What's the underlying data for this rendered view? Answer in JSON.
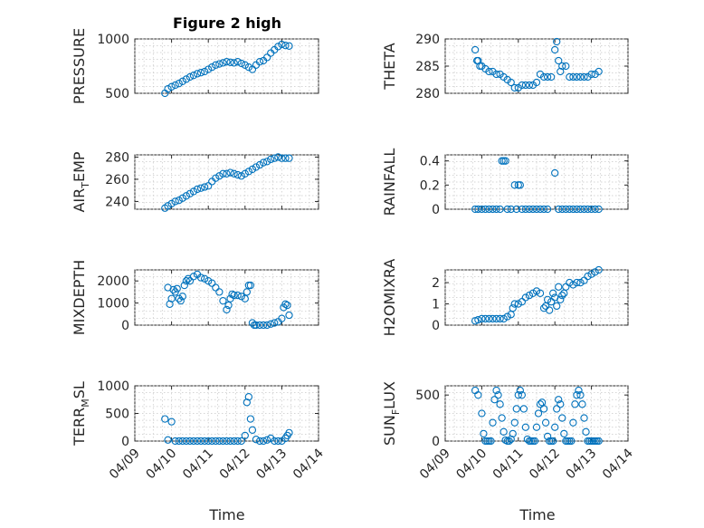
{
  "title": "Figure 2 high",
  "xlabel": "Time",
  "date_ticks": [
    "04/09",
    "04/10",
    "04/11",
    "04/12",
    "04/13",
    "04/14"
  ],
  "marker_color": "#0072BD",
  "chart_data": [
    {
      "id": "pressure",
      "type": "scatter",
      "ylabel": "PRESSURE",
      "ylabel_sub": "",
      "ylim": [
        500,
        1000
      ],
      "yticks": [
        500,
        1000
      ],
      "grid": true,
      "x_unit": "day offset from 04/09",
      "series": [
        {
          "x": [
            0.82,
            0.9,
            1.0,
            1.1,
            1.2,
            1.3,
            1.4,
            1.5,
            1.6,
            1.7,
            1.8,
            1.9,
            2.0,
            2.1,
            2.2,
            2.3,
            2.4,
            2.5,
            2.6,
            2.7,
            2.8,
            2.9,
            3.0,
            3.1,
            3.2,
            3.3,
            3.4,
            3.5,
            3.6,
            3.7,
            3.8,
            3.9,
            4.0,
            4.1,
            4.2
          ],
          "y": [
            500,
            540,
            560,
            575,
            590,
            610,
            630,
            650,
            665,
            680,
            690,
            700,
            720,
            740,
            760,
            770,
            780,
            790,
            785,
            780,
            790,
            775,
            760,
            740,
            720,
            760,
            790,
            800,
            830,
            870,
            900,
            930,
            950,
            940,
            935
          ]
        }
      ]
    },
    {
      "id": "theta",
      "type": "scatter",
      "ylabel": "THETA",
      "ylabel_sub": "",
      "ylim": [
        280,
        290
      ],
      "yticks": [
        280,
        285,
        290
      ],
      "grid": true,
      "x_unit": "day offset from 04/09",
      "series": [
        {
          "x": [
            0.82,
            0.87,
            0.9,
            0.95,
            1.0,
            1.1,
            1.2,
            1.3,
            1.4,
            1.5,
            1.6,
            1.7,
            1.8,
            1.9,
            2.0,
            2.1,
            2.2,
            2.3,
            2.4,
            2.5,
            2.6,
            2.7,
            2.8,
            2.9,
            3.0,
            3.05,
            3.1,
            3.15,
            3.2,
            3.3,
            3.4,
            3.5,
            3.6,
            3.7,
            3.8,
            3.9,
            4.0,
            4.1,
            4.2
          ],
          "y": [
            288,
            286,
            286,
            285,
            285,
            284.5,
            284,
            284,
            283.5,
            283.5,
            283,
            282.5,
            282,
            281,
            281,
            281.5,
            281.5,
            281.5,
            281.5,
            282,
            283.5,
            283,
            283,
            283,
            288,
            289.5,
            286,
            284,
            285,
            285,
            283,
            283,
            283,
            283,
            283,
            283,
            283.5,
            283.5,
            284
          ]
        }
      ]
    },
    {
      "id": "air-temp",
      "type": "scatter",
      "ylabel": "AIR",
      "ylabel_sub": "T",
      "ylabel_suffix": "EMP",
      "ylim": [
        233,
        282
      ],
      "yticks": [
        240,
        260,
        280
      ],
      "grid": true,
      "x_unit": "day offset from 04/09",
      "series": [
        {
          "x": [
            0.82,
            0.9,
            1.0,
            1.1,
            1.2,
            1.3,
            1.4,
            1.5,
            1.6,
            1.7,
            1.8,
            1.9,
            2.0,
            2.1,
            2.2,
            2.3,
            2.4,
            2.5,
            2.6,
            2.7,
            2.8,
            2.9,
            3.0,
            3.1,
            3.2,
            3.3,
            3.4,
            3.5,
            3.6,
            3.7,
            3.8,
            3.9,
            4.0,
            4.1,
            4.2
          ],
          "y": [
            234,
            236,
            238,
            240,
            241,
            243,
            245,
            247,
            249,
            251,
            252,
            253,
            254,
            258,
            261,
            263,
            265,
            265,
            266,
            265,
            264,
            263,
            265,
            267,
            269,
            271,
            273,
            275,
            276,
            278,
            279,
            280,
            279,
            279,
            279
          ]
        }
      ]
    },
    {
      "id": "rainfall",
      "type": "scatter",
      "ylabel": "RAINFALL",
      "ylabel_sub": "",
      "ylim": [
        0,
        0.45
      ],
      "yticks": [
        0,
        0.2,
        0.4
      ],
      "grid": true,
      "x_unit": "day offset from 04/09",
      "series": [
        {
          "x": [
            0.82,
            0.9,
            1.0,
            1.1,
            1.2,
            1.3,
            1.4,
            1.5,
            1.55,
            1.6,
            1.65,
            1.7,
            1.8,
            1.9,
            1.95,
            2.0,
            2.05,
            2.1,
            2.2,
            2.3,
            2.4,
            2.5,
            2.6,
            2.7,
            2.8,
            3.0,
            3.1,
            3.2,
            3.3,
            3.4,
            3.5,
            3.6,
            3.7,
            3.8,
            3.9,
            4.0,
            4.1,
            4.2
          ],
          "y": [
            0,
            0,
            0,
            0,
            0,
            0,
            0,
            0,
            0.4,
            0.4,
            0.4,
            0,
            0,
            0.2,
            0,
            0.2,
            0.2,
            0,
            0,
            0,
            0,
            0,
            0,
            0,
            0,
            0.3,
            0,
            0,
            0,
            0,
            0,
            0,
            0,
            0,
            0,
            0,
            0,
            0
          ]
        }
      ]
    },
    {
      "id": "mixdepth",
      "type": "scatter",
      "ylabel": "MIXDEPTH",
      "ylabel_sub": "",
      "ylim": [
        0,
        2500
      ],
      "yticks": [
        0,
        1000,
        2000
      ],
      "grid": true,
      "x_unit": "day offset from 04/09",
      "series": [
        {
          "x": [
            0.9,
            0.95,
            1.0,
            1.05,
            1.1,
            1.15,
            1.2,
            1.25,
            1.3,
            1.35,
            1.4,
            1.45,
            1.5,
            1.6,
            1.7,
            1.8,
            1.9,
            2.0,
            2.1,
            2.2,
            2.3,
            2.4,
            2.5,
            2.55,
            2.6,
            2.65,
            2.7,
            2.8,
            2.9,
            3.0,
            3.05,
            3.1,
            3.15,
            3.2,
            3.25,
            3.3,
            3.4,
            3.5,
            3.6,
            3.7,
            3.8,
            3.9,
            4.0,
            4.05,
            4.1,
            4.15,
            4.2
          ],
          "y": [
            1700,
            950,
            1200,
            1600,
            1500,
            1650,
            1200,
            1100,
            1300,
            1800,
            2000,
            2100,
            2000,
            2200,
            2300,
            2150,
            2100,
            2000,
            1900,
            1700,
            1500,
            1100,
            700,
            900,
            1200,
            1400,
            1350,
            1350,
            1300,
            1200,
            1500,
            1800,
            1800,
            100,
            0,
            0,
            0,
            0,
            0,
            50,
            100,
            150,
            300,
            800,
            950,
            900,
            450
          ]
        }
      ]
    },
    {
      "id": "h2omixra",
      "type": "scatter",
      "ylabel": "H2OMIXRA",
      "ylabel_sub": "",
      "ylim": [
        0,
        2.6
      ],
      "yticks": [
        0,
        1,
        2
      ],
      "grid": true,
      "x_unit": "day offset from 04/09",
      "series": [
        {
          "x": [
            0.82,
            0.9,
            1.0,
            1.1,
            1.2,
            1.3,
            1.4,
            1.5,
            1.6,
            1.7,
            1.8,
            1.85,
            1.9,
            2.0,
            2.1,
            2.2,
            2.3,
            2.4,
            2.5,
            2.6,
            2.7,
            2.75,
            2.8,
            2.85,
            2.9,
            2.95,
            3.0,
            3.05,
            3.1,
            3.15,
            3.2,
            3.25,
            3.3,
            3.4,
            3.5,
            3.6,
            3.7,
            3.8,
            3.9,
            4.0,
            4.1,
            4.2
          ],
          "y": [
            0.2,
            0.25,
            0.3,
            0.3,
            0.3,
            0.3,
            0.3,
            0.3,
            0.3,
            0.4,
            0.5,
            0.8,
            1.0,
            1.0,
            1.1,
            1.3,
            1.4,
            1.5,
            1.6,
            1.5,
            0.8,
            0.9,
            1.2,
            0.7,
            1.1,
            1.5,
            1.3,
            0.9,
            1.8,
            1.2,
            1.4,
            1.5,
            1.8,
            2.0,
            1.9,
            2.0,
            2.0,
            2.1,
            2.3,
            2.4,
            2.5,
            2.6
          ]
        }
      ]
    },
    {
      "id": "terr-msl",
      "type": "scatter",
      "ylabel": "TERR",
      "ylabel_sub": "M",
      "ylabel_suffix": "SL",
      "ylim": [
        0,
        1000
      ],
      "yticks": [
        0,
        500,
        1000
      ],
      "grid": true,
      "x_unit": "day offset from 04/09",
      "series": [
        {
          "x": [
            0.82,
            0.9,
            1.0,
            1.1,
            1.2,
            1.3,
            1.4,
            1.5,
            1.6,
            1.7,
            1.8,
            1.9,
            2.0,
            2.1,
            2.2,
            2.3,
            2.4,
            2.5,
            2.6,
            2.7,
            2.8,
            2.9,
            3.0,
            3.05,
            3.1,
            3.15,
            3.2,
            3.3,
            3.4,
            3.5,
            3.6,
            3.7,
            3.8,
            3.9,
            4.0,
            4.1,
            4.15,
            4.2
          ],
          "y": [
            400,
            20,
            350,
            0,
            0,
            0,
            0,
            0,
            0,
            0,
            0,
            0,
            0,
            0,
            0,
            0,
            0,
            0,
            0,
            0,
            0,
            0,
            100,
            700,
            800,
            400,
            200,
            30,
            0,
            0,
            20,
            50,
            0,
            0,
            0,
            50,
            100,
            150
          ]
        }
      ]
    },
    {
      "id": "sun-flux",
      "type": "scatter",
      "ylabel": "SUN",
      "ylabel_sub": "F",
      "ylabel_suffix": "LUX",
      "ylim": [
        0,
        600
      ],
      "yticks": [
        0,
        500
      ],
      "grid": true,
      "x_unit": "day offset from 04/09",
      "series": [
        {
          "x": [
            0.82,
            0.9,
            1.0,
            1.05,
            1.1,
            1.15,
            1.2,
            1.25,
            1.3,
            1.35,
            1.4,
            1.45,
            1.5,
            1.55,
            1.6,
            1.65,
            1.7,
            1.75,
            1.8,
            1.85,
            1.9,
            1.95,
            2.0,
            2.05,
            2.1,
            2.15,
            2.2,
            2.25,
            2.3,
            2.35,
            2.4,
            2.45,
            2.5,
            2.55,
            2.6,
            2.65,
            2.7,
            2.75,
            2.8,
            2.85,
            2.9,
            2.95,
            3.0,
            3.05,
            3.1,
            3.15,
            3.2,
            3.25,
            3.3,
            3.35,
            3.4,
            3.45,
            3.5,
            3.55,
            3.6,
            3.65,
            3.7,
            3.75,
            3.8,
            3.85,
            3.9,
            3.95,
            4.0,
            4.05,
            4.1,
            4.15,
            4.2
          ],
          "y": [
            550,
            500,
            300,
            80,
            0,
            0,
            0,
            0,
            200,
            450,
            550,
            500,
            400,
            250,
            100,
            10,
            0,
            0,
            20,
            80,
            200,
            350,
            500,
            550,
            500,
            350,
            150,
            20,
            0,
            0,
            0,
            0,
            150,
            300,
            400,
            420,
            350,
            200,
            50,
            0,
            0,
            0,
            150,
            350,
            450,
            400,
            250,
            80,
            0,
            0,
            0,
            0,
            200,
            400,
            500,
            550,
            500,
            400,
            250,
            100,
            0,
            0,
            0,
            0,
            0,
            0,
            0
          ]
        }
      ]
    }
  ]
}
